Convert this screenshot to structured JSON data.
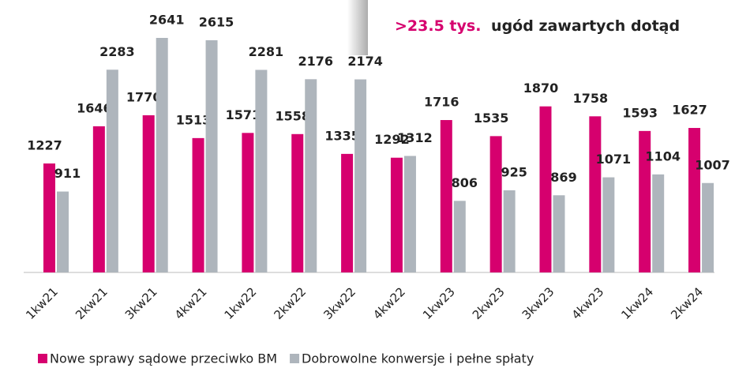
{
  "chart_data": {
    "type": "bar",
    "annotation": {
      "highlight": ">23.5 tys.",
      "text": "ugód zawartych dotąd"
    },
    "categories": [
      "1kw21",
      "2kw21",
      "3kw21",
      "4kw21",
      "1kw22",
      "2kw22",
      "3kw22",
      "4kw22",
      "1kw23",
      "2kw23",
      "3kw23",
      "4kw23",
      "1kw24",
      "2kw24"
    ],
    "series": [
      {
        "name": "Nowe sprawy sądowe przeciwko BM",
        "color": "#d6006e",
        "values": [
          1227,
          1646,
          1770,
          1513,
          1571,
          1558,
          1335,
          1292,
          1716,
          1535,
          1870,
          1758,
          1593,
          1627
        ]
      },
      {
        "name": "Dobrowolne konwersje i pełne spłaty",
        "color": "#aeb5bc",
        "values": [
          911,
          2283,
          2641,
          2615,
          2281,
          2176,
          2174,
          1312,
          806,
          925,
          869,
          1071,
          1104,
          1007
        ]
      }
    ]
  }
}
